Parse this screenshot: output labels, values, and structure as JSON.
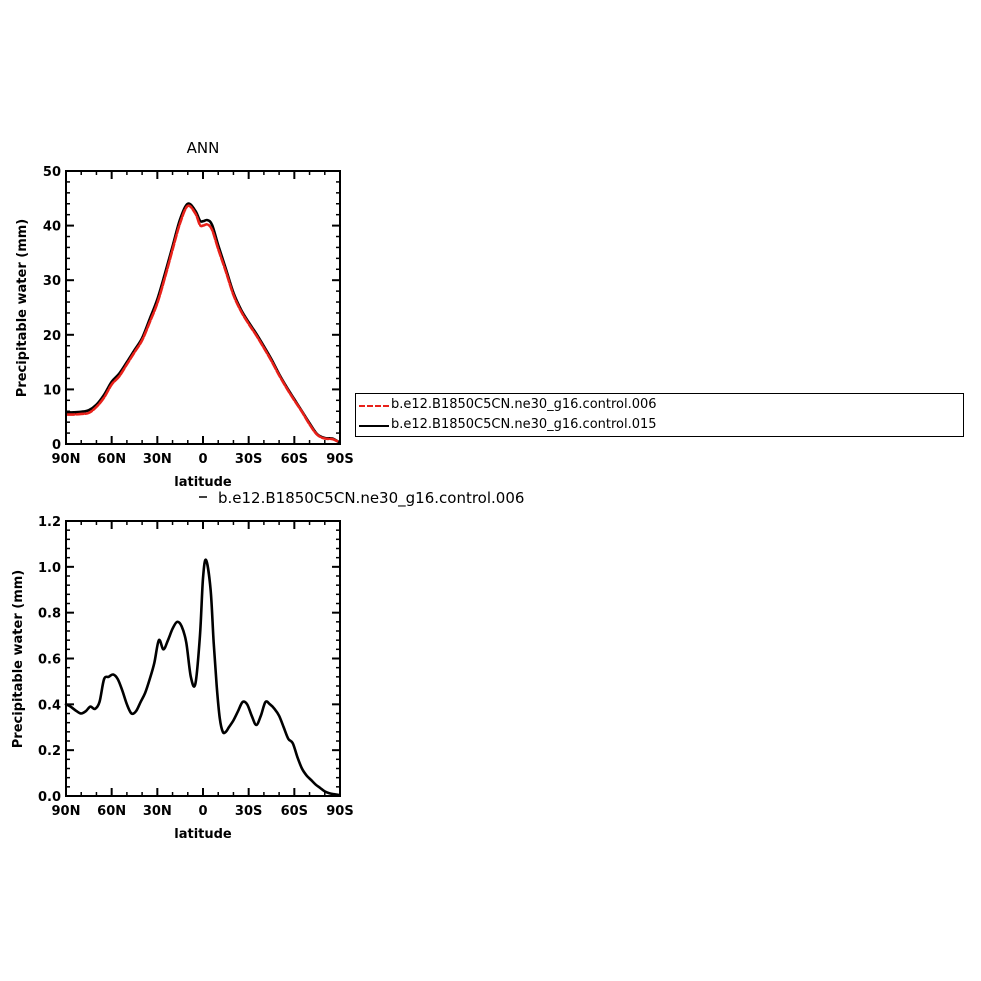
{
  "chart_data": [
    {
      "type": "line",
      "title": "ANN",
      "xlabel": "latitude",
      "ylabel": "Precipitable water (mm)",
      "xlim": [
        90,
        -90
      ],
      "ylim": [
        0,
        50
      ],
      "xticks": [
        90,
        60,
        30,
        0,
        -30,
        -60,
        -90
      ],
      "xtick_labels": [
        "90N",
        "60N",
        "30N",
        "0",
        "30S",
        "60S",
        "90S"
      ],
      "yticks": [
        0,
        10,
        20,
        30,
        40,
        50
      ],
      "ytick_labels": [
        "0",
        "10",
        "20",
        "30",
        "40",
        "50"
      ],
      "series": [
        {
          "name": "b.e12.B1850C5CN.ne30_g16.control.006",
          "color": "#e8211a",
          "dash": "dashed",
          "x": [
            89,
            85,
            80,
            75,
            70,
            65,
            60,
            55,
            50,
            45,
            40,
            35,
            30,
            25,
            20,
            15,
            10,
            5,
            2,
            0,
            -3,
            -6,
            -10,
            -15,
            -20,
            -25,
            -30,
            -35,
            -40,
            -45,
            -50,
            -55,
            -60,
            -65,
            -70,
            -75,
            -80,
            -85,
            -89
          ],
          "y": [
            5.4,
            5.4,
            5.5,
            5.7,
            6.8,
            8.5,
            10.9,
            12.4,
            14.6,
            16.8,
            19.0,
            22.3,
            25.8,
            30.5,
            35.6,
            40.5,
            43.6,
            42.2,
            40.1,
            40.0,
            40.2,
            39.2,
            35.7,
            31.6,
            27.3,
            24.3,
            22.0,
            19.9,
            17.6,
            15.2,
            12.6,
            10.2,
            8.0,
            5.9,
            3.6,
            1.7,
            1.0,
            0.9,
            0.4
          ]
        },
        {
          "name": "b.e12.B1850C5CN.ne30_g16.control.015",
          "color": "#000000",
          "dash": "solid",
          "x": [
            89,
            85,
            80,
            75,
            70,
            65,
            60,
            55,
            50,
            45,
            40,
            35,
            30,
            25,
            20,
            15,
            10,
            5,
            2,
            0,
            -3,
            -6,
            -10,
            -15,
            -20,
            -25,
            -30,
            -35,
            -40,
            -45,
            -50,
            -55,
            -60,
            -65,
            -70,
            -75,
            -80,
            -85,
            -89
          ],
          "y": [
            5.8,
            5.8,
            5.9,
            6.2,
            7.2,
            9.0,
            11.4,
            12.9,
            15.0,
            17.2,
            19.4,
            22.9,
            26.5,
            31.2,
            36.2,
            41.2,
            44.0,
            42.7,
            40.9,
            40.8,
            41.0,
            40.1,
            36.4,
            32.1,
            27.7,
            24.6,
            22.3,
            20.2,
            17.9,
            15.5,
            12.8,
            10.4,
            8.2,
            6.0,
            3.8,
            1.8,
            1.1,
            1.0,
            0.4
          ]
        }
      ],
      "legend": "right"
    },
    {
      "type": "line",
      "title": "b.e12.B1850C5CN.ne30_g16.control.006",
      "xlabel": "latitude",
      "ylabel": "Precipitable water (mm)",
      "xlim": [
        90,
        -90
      ],
      "ylim": [
        0,
        1.2
      ],
      "xticks": [
        90,
        60,
        30,
        0,
        -30,
        -60,
        -90
      ],
      "xtick_labels": [
        "90N",
        "60N",
        "30N",
        "0",
        "30S",
        "60S",
        "90S"
      ],
      "yticks": [
        0,
        0.2,
        0.4,
        0.6,
        0.8,
        1.0,
        1.2
      ],
      "ytick_labels": [
        "0.0",
        "0.2",
        "0.4",
        "0.6",
        "0.8",
        "1.0",
        "1.2"
      ],
      "series": [
        {
          "name": "",
          "color": "#000000",
          "x": [
            90,
            87,
            83,
            80,
            77,
            74,
            71,
            68,
            65,
            62,
            59,
            56,
            53,
            50,
            47,
            44,
            41,
            38,
            35,
            32,
            29,
            26,
            23,
            20,
            17,
            14,
            11,
            8,
            5,
            2,
            0,
            -2,
            -5,
            -7,
            -9,
            -11,
            -13,
            -15,
            -17,
            -20,
            -23,
            -26,
            -29,
            -32,
            -35,
            -38,
            -41,
            -44,
            -47,
            -50,
            -53,
            -56,
            -59,
            -62,
            -65,
            -68,
            -71,
            -74,
            -77,
            -80,
            -83,
            -86,
            -89
          ],
          "y": [
            0.4,
            0.39,
            0.37,
            0.36,
            0.37,
            0.39,
            0.38,
            0.41,
            0.51,
            0.52,
            0.53,
            0.51,
            0.46,
            0.4,
            0.36,
            0.37,
            0.41,
            0.45,
            0.51,
            0.58,
            0.68,
            0.64,
            0.68,
            0.73,
            0.76,
            0.74,
            0.67,
            0.52,
            0.49,
            0.7,
            0.95,
            1.03,
            0.9,
            0.67,
            0.48,
            0.34,
            0.28,
            0.28,
            0.3,
            0.33,
            0.37,
            0.41,
            0.4,
            0.35,
            0.31,
            0.35,
            0.41,
            0.4,
            0.38,
            0.35,
            0.3,
            0.25,
            0.23,
            0.17,
            0.12,
            0.09,
            0.07,
            0.05,
            0.035,
            0.02,
            0.012,
            0.008,
            0.005
          ]
        }
      ]
    }
  ]
}
